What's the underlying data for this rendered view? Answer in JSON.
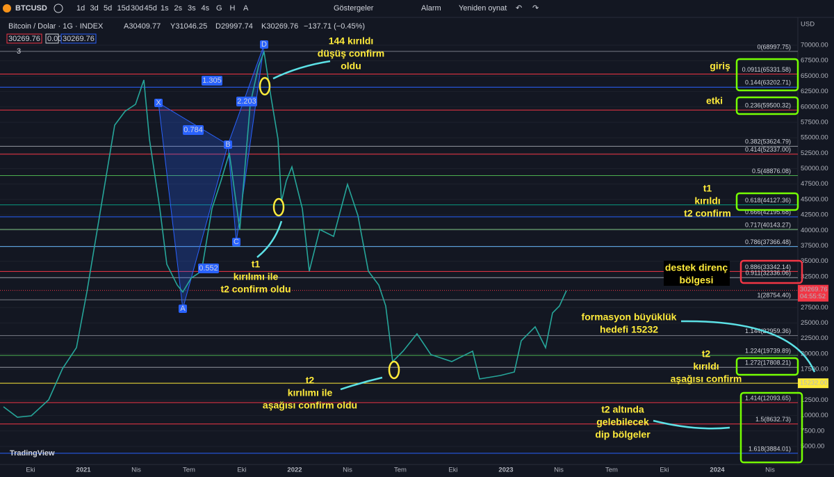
{
  "toolbar": {
    "symbol": "BTCUSD",
    "intervals": [
      "1d",
      "3d",
      "5d",
      "15d",
      "30d",
      "45d",
      "1s",
      "2s",
      "3s",
      "4s",
      "G",
      "H",
      "A"
    ],
    "indicators": "Göstergeler",
    "alert": "Alarm",
    "replay": "Yeniden oynat"
  },
  "legend": {
    "title": "Bitcoin / Dolar · 1G · INDEX",
    "ohlc": [
      "A30409.77",
      "Y31046.25",
      "D29997.74",
      "K30269.76",
      "−137.71 (−0.45%)"
    ],
    "boxes": [
      "30269.76",
      "0.00",
      "30269.76"
    ],
    "collapse": "3"
  },
  "price_axis": {
    "currency": "USD",
    "ticks": [
      {
        "value": 70000,
        "label": "70000.00"
      },
      {
        "value": 67500,
        "label": "67500.00"
      },
      {
        "value": 65000,
        "label": "65000.00"
      },
      {
        "value": 62500,
        "label": "62500.00"
      },
      {
        "value": 60000,
        "label": "60000.00"
      },
      {
        "value": 57500,
        "label": "57500.00"
      },
      {
        "value": 55000,
        "label": "55000.00"
      },
      {
        "value": 52500,
        "label": "52500.00"
      },
      {
        "value": 50000,
        "label": "50000.00"
      },
      {
        "value": 47500,
        "label": "47500.00"
      },
      {
        "value": 45000,
        "label": "45000.00"
      },
      {
        "value": 42500,
        "label": "42500.00"
      },
      {
        "value": 40000,
        "label": "40000.00"
      },
      {
        "value": 37500,
        "label": "37500.00"
      },
      {
        "value": 35000,
        "label": "35000.00"
      },
      {
        "value": 32500,
        "label": "32500.00"
      },
      {
        "value": 27500,
        "label": "27500.00"
      },
      {
        "value": 25000,
        "label": "25000.00"
      },
      {
        "value": 22500,
        "label": "22500.00"
      },
      {
        "value": 20000,
        "label": "20000.00"
      },
      {
        "value": 17500,
        "label": "17500.00"
      },
      {
        "value": 12500,
        "label": "12500.00"
      },
      {
        "value": 10000,
        "label": "10000.00"
      },
      {
        "value": 7500,
        "label": "7500.00"
      },
      {
        "value": 5000,
        "label": "5000.00"
      }
    ],
    "last_price": {
      "value": 30269.76,
      "label": "30269.76",
      "countdown": "04:55:52"
    },
    "target": {
      "value": 15232,
      "label": "15232.00"
    }
  },
  "time_axis": [
    "Eki",
    "2021",
    "Nis",
    "Tem",
    "Eki",
    "2022",
    "Nis",
    "Tem",
    "Eki",
    "2023",
    "Nis",
    "Tem",
    "Eki",
    "2024",
    "Nis"
  ],
  "fib_levels": [
    {
      "value": 68997.75,
      "label": "0(68997.75)",
      "color": "#787b86"
    },
    {
      "value": 65331.58,
      "label": "0.0911(65331.58)",
      "color": "#f23645"
    },
    {
      "value": 63202.71,
      "label": "0.144(63202.71)",
      "color": "#2962ff"
    },
    {
      "value": 59500.32,
      "label": "0.236(59500.32)",
      "color": "#f23645"
    },
    {
      "value": 53624.79,
      "label": "0.382(53624.79)",
      "color": "#9598a1"
    },
    {
      "value": 52337.0,
      "label": "0.414(52337.00)",
      "color": "#f23645"
    },
    {
      "value": 48876.08,
      "label": "0.5(48876.08)",
      "color": "#4caf50"
    },
    {
      "value": 44127.36,
      "label": "0.618(44127.36)",
      "color": "#089981"
    },
    {
      "value": 42195.68,
      "label": "0.666(42195.68)",
      "color": "#2962ff"
    },
    {
      "value": 40143.27,
      "label": "0.717(40143.27)",
      "color": "#81c784"
    },
    {
      "value": 37366.48,
      "label": "0.786(37366.48)",
      "color": "#64b5f6"
    },
    {
      "value": 33342.14,
      "label": "0.886(33342.14)",
      "color": "#f23645"
    },
    {
      "value": 32336.06,
      "label": "0.911(32336.06)",
      "color": "#9598a1"
    },
    {
      "value": 28754.4,
      "label": "1(28754.40)",
      "color": "#787b86"
    },
    {
      "value": 22959.36,
      "label": "1.144(22959.36)",
      "color": "#787b86"
    },
    {
      "value": 19739.89,
      "label": "1.224(19739.89)",
      "color": "#4caf50"
    },
    {
      "value": 17808.21,
      "label": "1.272(17808.21)",
      "color": "#9598a1"
    },
    {
      "value": 12093.65,
      "label": "1.414(12093.65)",
      "color": "#f23645"
    },
    {
      "value": 8632.73,
      "label": "1.5(8632.73)",
      "color": "#f23645"
    },
    {
      "value": 3884.01,
      "label": "1.618(3884.01)",
      "color": "#2962ff"
    }
  ],
  "pattern": {
    "points": [
      "X",
      "A",
      "B",
      "C",
      "D"
    ],
    "ratios": [
      "1.305",
      "0.784",
      "2.203",
      "0.552"
    ]
  },
  "annotations": {
    "break_144": [
      "144 kırıldı",
      "düşüş confirm",
      "oldu"
    ],
    "entry": "giriş",
    "effect": "etki",
    "t1": [
      "t1",
      "kırıldı",
      "t2 confirm"
    ],
    "t1_confirm": [
      "t1",
      "kırılımı ile",
      "t2 confirm oldu"
    ],
    "zone": [
      "destek direnç",
      "bölgesi"
    ],
    "target": [
      "formasyon büyüklük",
      "hedefi 15232"
    ],
    "t2": [
      "t2",
      "kırıldı",
      "aşağısı confirm"
    ],
    "t2_confirm": [
      "t2",
      "kırılımı ile",
      "aşağısı confirm oldu"
    ],
    "dip": [
      "t2 altında",
      "gelebilecek",
      "dip bölgeler"
    ]
  },
  "branding": "TradingView"
}
